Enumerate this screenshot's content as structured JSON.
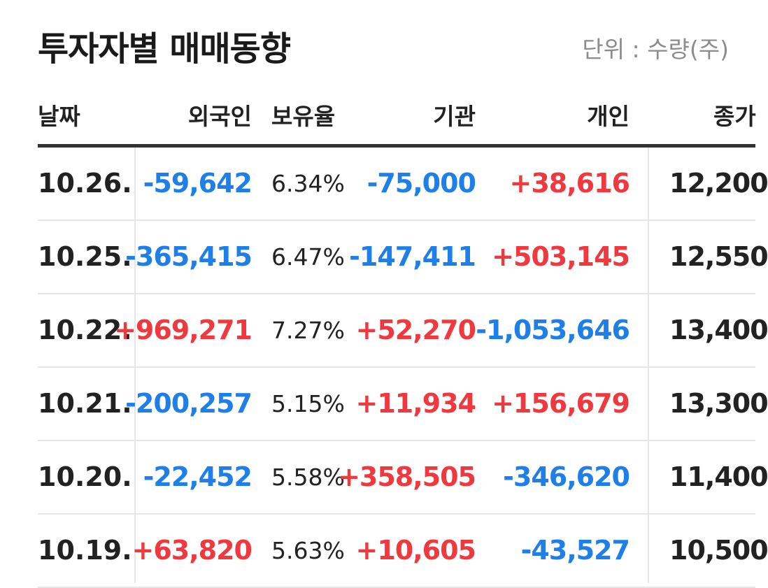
{
  "title": "투자자별 매매동향",
  "unit": "단위 : 수량(주)",
  "columns": {
    "date": "날짜",
    "foreign": "외국인",
    "ratio": "보유율",
    "institution": "기관",
    "individual": "개인",
    "close": "종가"
  },
  "rows": [
    {
      "date": "10.26.",
      "foreign": "-59,642",
      "ratio": "6.34%",
      "institution": "-75,000",
      "individual": "+38,616",
      "close": "12,200"
    },
    {
      "date": "10.25.",
      "foreign": "-365,415",
      "ratio": "6.47%",
      "institution": "-147,411",
      "individual": "+503,145",
      "close": "12,550"
    },
    {
      "date": "10.22.",
      "foreign": "+969,271",
      "ratio": "7.27%",
      "institution": "+52,270",
      "individual": "-1,053,646",
      "close": "13,400"
    },
    {
      "date": "10.21.",
      "foreign": "-200,257",
      "ratio": "5.15%",
      "institution": "+11,934",
      "individual": "+156,679",
      "close": "13,300"
    },
    {
      "date": "10.20.",
      "foreign": "-22,452",
      "ratio": "5.58%",
      "institution": "+358,505",
      "individual": "-346,620",
      "close": "11,400"
    },
    {
      "date": "10.19.",
      "foreign": "+63,820",
      "ratio": "5.63%",
      "institution": "+10,605",
      "individual": "-43,527",
      "close": "10,500"
    }
  ],
  "colors": {
    "up": "#f0383f",
    "down": "#1f7fe8",
    "text": "#222222"
  }
}
